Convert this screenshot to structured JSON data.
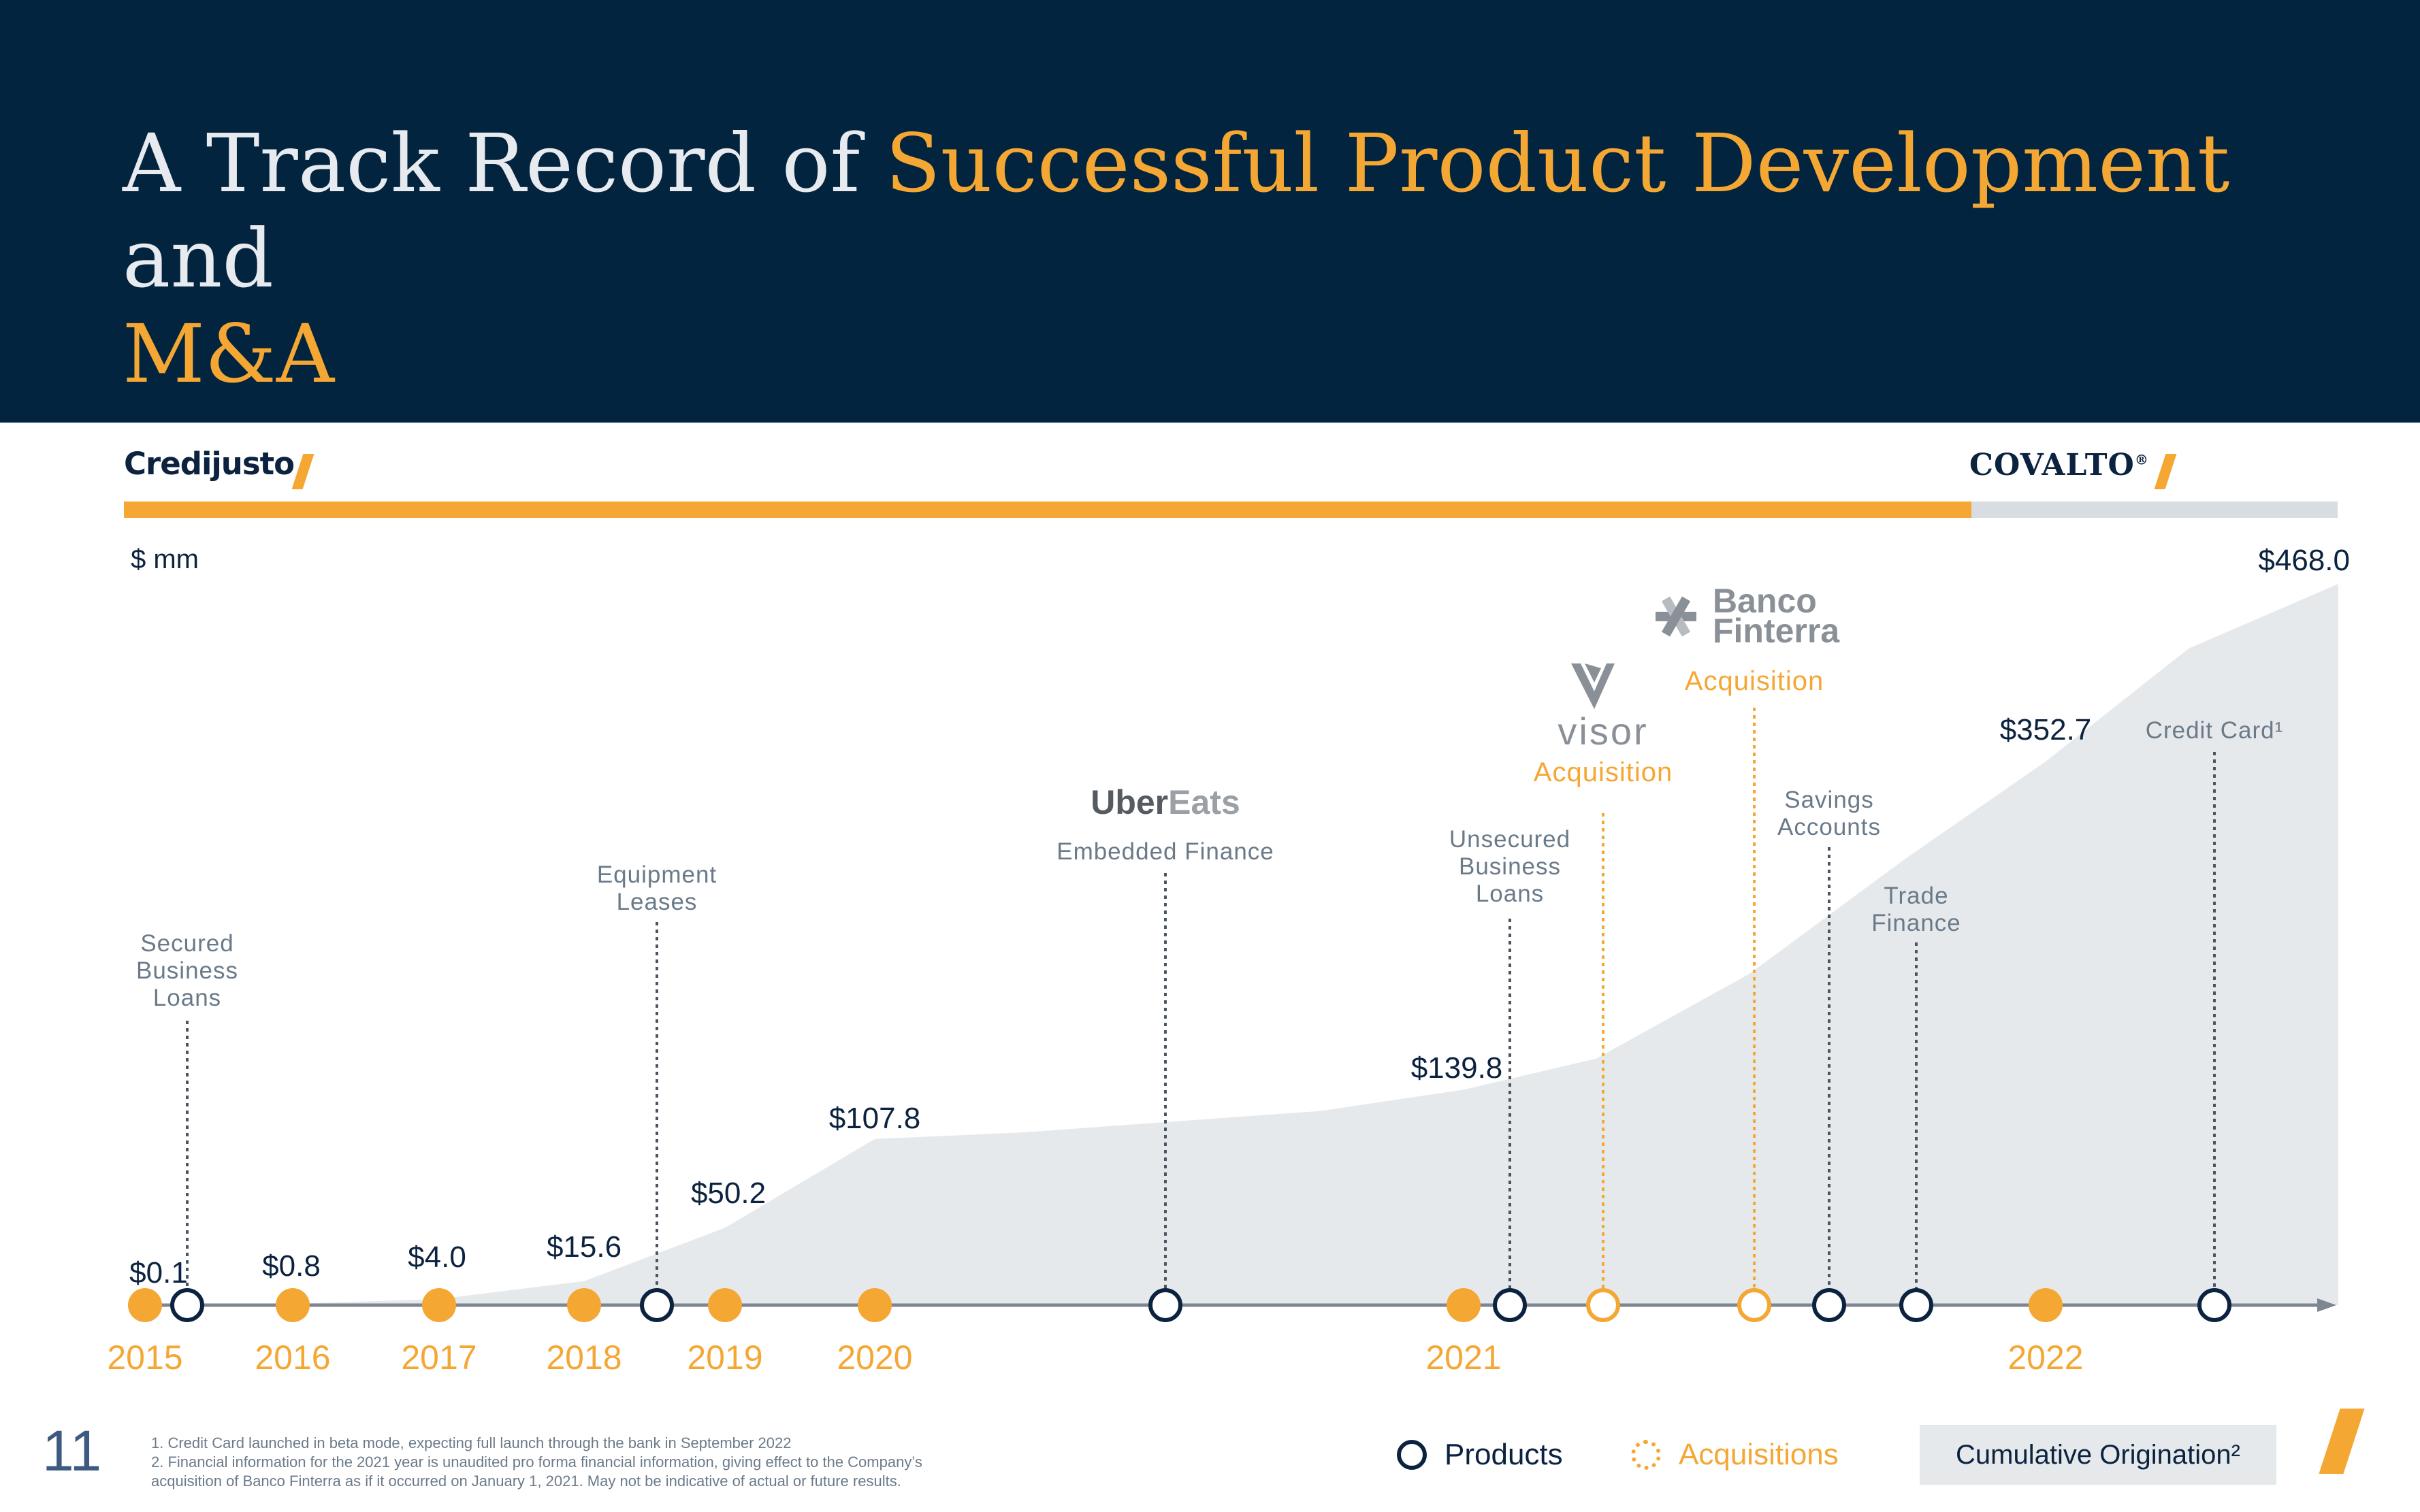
{
  "title": {
    "part1": "A Track Record of ",
    "highlight1": "Successful Product Development",
    "part2": " and ",
    "highlight2": "M&A"
  },
  "brands": {
    "left": "Credijusto",
    "right": "COVALTO",
    "right_mark": "®"
  },
  "unit": "$ mm",
  "colors": {
    "navy": "#02243f",
    "orange": "#f5a734",
    "grey_area": "#e6e9ec",
    "text_grey": "#6b7a89",
    "icon_grey": "#8a9097"
  },
  "chart_data": {
    "type": "area",
    "series": [
      {
        "name": "Cumulative Origination",
        "points": [
          {
            "x": "2015",
            "value": 0.1,
            "label": "$0.1"
          },
          {
            "x": "2016",
            "value": 0.8,
            "label": "$0.8"
          },
          {
            "x": "2017",
            "value": 4.0,
            "label": "$4.0"
          },
          {
            "x": "2018",
            "value": 15.6,
            "label": "$15.6"
          },
          {
            "x": "2019",
            "value": 50.2,
            "label": "$50.2"
          },
          {
            "x": "2020",
            "value": 107.8,
            "label": "$107.8"
          },
          {
            "x": "2021",
            "value": 139.8,
            "label": "$139.8"
          },
          {
            "x": "2022",
            "value": 352.7,
            "label": "$352.7"
          },
          {
            "x": "end",
            "value": 468.0,
            "label": "$468.0"
          }
        ]
      }
    ],
    "years": [
      "2015",
      "2016",
      "2017",
      "2018",
      "2019",
      "2020",
      "2021",
      "2022"
    ],
    "events": [
      {
        "kind": "product",
        "label_lines": [
          "Secured",
          "Business",
          "Loans"
        ]
      },
      {
        "kind": "product",
        "label_lines": [
          "Equipment",
          "Leases"
        ]
      },
      {
        "kind": "product",
        "label_lines": [
          "Embedded Finance"
        ],
        "logo": {
          "part1": "Uber",
          "part2": "Eats"
        }
      },
      {
        "kind": "product",
        "label_lines": [
          "Unsecured",
          "Business",
          "Loans"
        ]
      },
      {
        "kind": "acquisition",
        "label_lines": [
          "Acquisition"
        ],
        "logo": {
          "text": "visor",
          "icon": "visor-v-icon"
        }
      },
      {
        "kind": "acquisition",
        "label_lines": [
          "Acquisition"
        ],
        "logo": {
          "line1": "Banco",
          "line2": "Finterra",
          "icon": "finterra-asterisk-icon"
        }
      },
      {
        "kind": "product",
        "label_lines": [
          "Savings",
          "Accounts"
        ]
      },
      {
        "kind": "product",
        "label_lines": [
          "Trade",
          "Finance"
        ]
      },
      {
        "kind": "product",
        "label_lines": [
          "Credit Card¹"
        ]
      }
    ]
  },
  "legend": {
    "products": "Products",
    "acquisitions": "Acquisitions",
    "cumulative": "Cumulative Origination²"
  },
  "page_number": "11",
  "footnotes": [
    "1. Credit Card launched in beta mode, expecting full launch through the bank in September 2022",
    "2. Financial information for the 2021 year is unaudited pro forma financial information, giving effect to the Company’s",
    "acquisition of Banco Finterra as if it occurred on January 1, 2021. May not be indicative of actual or future results."
  ]
}
